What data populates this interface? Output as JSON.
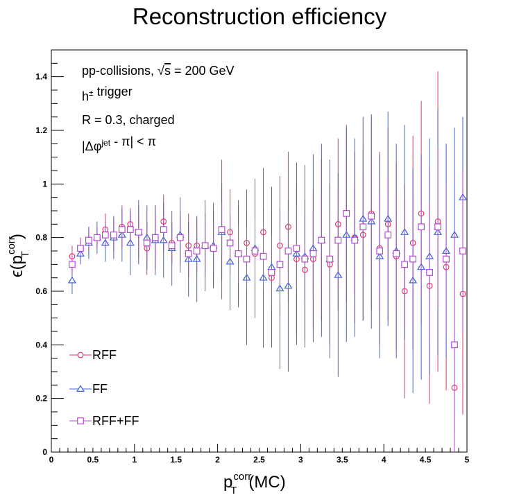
{
  "chart_data": {
    "type": "scatter",
    "title": "Reconstruction efficiency",
    "xlabel": {
      "main": "p",
      "sup": "corr",
      "sub": "T",
      "suffix": "(MC)"
    },
    "ylabel": {
      "prefix": "ϵ(p",
      "sup": "corr",
      "sub": "T",
      "suffix": ")"
    },
    "xlim": [
      0,
      5
    ],
    "ylim": [
      0,
      1.5
    ],
    "xticks": [
      0,
      0.5,
      1,
      1.5,
      2,
      2.5,
      3,
      3.5,
      4,
      4.5,
      5
    ],
    "xtick_labels": [
      "0",
      "0.5",
      "1",
      "1.5",
      "2",
      "2.5",
      "3",
      "3.5",
      "4",
      "4.5",
      "5"
    ],
    "yticks": [
      0,
      0.2,
      0.4,
      0.6,
      0.8,
      1,
      1.2,
      1.4
    ],
    "ytick_labels": [
      "0",
      "0.2",
      "0.4",
      "0.6",
      "0.8",
      "1",
      "1.2",
      "1.4"
    ],
    "grid": false,
    "legend": "bottom-left",
    "annotations": [
      {
        "pre": "pp-collisions, ",
        "sqrt": "s",
        "post": " = 200 GeV"
      },
      {
        "pre": "h",
        "sup": "±",
        "post": " trigger"
      },
      {
        "pre": "R = 0.3, charged"
      },
      {
        "pre": "|Δφ",
        "sup": "jet",
        "post": " - π| < π"
      }
    ],
    "x": [
      0.25,
      0.35,
      0.45,
      0.55,
      0.65,
      0.75,
      0.85,
      0.95,
      1.05,
      1.15,
      1.25,
      1.35,
      1.45,
      1.55,
      1.65,
      1.75,
      1.85,
      1.95,
      2.05,
      2.15,
      2.25,
      2.35,
      2.45,
      2.55,
      2.65,
      2.75,
      2.85,
      2.95,
      3.05,
      3.15,
      3.25,
      3.35,
      3.45,
      3.55,
      3.65,
      3.75,
      3.85,
      3.95,
      4.05,
      4.15,
      4.25,
      4.35,
      4.45,
      4.55,
      4.65,
      4.75,
      4.85,
      4.95
    ],
    "series": [
      {
        "name": "RFF",
        "color": "#e8356a",
        "marker": "circle",
        "values": [
          0.73,
          0.76,
          0.79,
          0.8,
          0.83,
          0.81,
          0.84,
          0.85,
          0.82,
          0.76,
          0.8,
          0.86,
          0.78,
          0.8,
          0.77,
          0.77,
          0.77,
          0.76,
          0.83,
          0.82,
          0.74,
          0.78,
          0.74,
          0.82,
          0.65,
          0.77,
          0.84,
          0.72,
          0.68,
          0.72,
          0.79,
          0.7,
          0.85,
          0.89,
          0.8,
          0.81,
          0.89,
          0.76,
          0.85,
          0.73,
          0.6,
          0.78,
          0.89,
          0.62,
          0.86,
          0.69,
          0.24,
          0.59
        ],
        "errors": [
          0.04,
          0.04,
          0.05,
          0.04,
          0.06,
          0.06,
          0.08,
          0.06,
          0.1,
          0.1,
          0.12,
          0.1,
          0.08,
          0.1,
          0.12,
          0.1,
          0.12,
          0.14,
          0.26,
          0.16,
          0.18,
          0.2,
          0.22,
          0.24,
          0.24,
          0.26,
          0.28,
          0.28,
          0.26,
          0.26,
          0.3,
          0.3,
          0.32,
          0.33,
          0.32,
          0.32,
          0.36,
          0.36,
          0.36,
          0.35,
          0.4,
          0.4,
          0.42,
          0.44,
          0.56,
          0.46,
          0.18,
          0.45
        ]
      },
      {
        "name": "FF",
        "color": "#3c64dc",
        "marker": "triangle",
        "values": [
          0.64,
          0.74,
          0.78,
          0.8,
          0.78,
          0.8,
          0.81,
          0.78,
          0.82,
          0.8,
          0.79,
          0.79,
          0.76,
          0.81,
          0.72,
          0.72,
          0.77,
          0.77,
          0.82,
          0.71,
          0.74,
          0.65,
          0.76,
          0.65,
          0.69,
          0.61,
          0.62,
          0.74,
          0.73,
          0.76,
          0.79,
          0.72,
          0.66,
          0.81,
          0.8,
          0.87,
          0.86,
          0.73,
          0.87,
          0.75,
          0.82,
          0.64,
          0.69,
          0.73,
          0.82,
          0.75,
          0.81,
          0.95
        ],
        "errors": [
          0.05,
          0.04,
          0.06,
          0.06,
          0.07,
          0.08,
          0.1,
          0.12,
          0.12,
          0.12,
          0.13,
          0.14,
          0.14,
          0.14,
          0.14,
          0.16,
          0.17,
          0.16,
          0.18,
          0.18,
          0.2,
          0.25,
          0.26,
          0.26,
          0.3,
          0.3,
          0.32,
          0.34,
          0.34,
          0.35,
          0.36,
          0.37,
          0.38,
          0.4,
          0.37,
          0.38,
          0.4,
          0.38,
          0.4,
          0.4,
          0.4,
          0.42,
          0.42,
          0.44,
          0.46,
          0.4,
          0.4,
          0.3
        ]
      },
      {
        "name": "RFF+FF",
        "color": "#b845d8",
        "marker": "square",
        "values": [
          0.7,
          0.76,
          0.79,
          0.8,
          0.81,
          0.81,
          0.83,
          0.83,
          0.82,
          0.78,
          0.8,
          0.83,
          0.77,
          0.8,
          0.74,
          0.75,
          0.77,
          0.76,
          0.83,
          0.78,
          0.74,
          0.72,
          0.75,
          0.73,
          0.67,
          0.7,
          0.75,
          0.76,
          0.72,
          0.74,
          0.79,
          0.72,
          0.79,
          0.89,
          0.79,
          0.84,
          0.88,
          0.75,
          0.81,
          0.74,
          0.7,
          0.72,
          0.84,
          0.67,
          0.84,
          0.72,
          0.4,
          0.75
        ],
        "errors": [
          0.04,
          0.03,
          0.04,
          0.04,
          0.05,
          0.05,
          0.06,
          0.06,
          0.07,
          0.07,
          0.08,
          0.08,
          0.07,
          0.08,
          0.08,
          0.08,
          0.09,
          0.09,
          0.1,
          0.1,
          0.11,
          0.12,
          0.12,
          0.13,
          0.14,
          0.14,
          0.15,
          0.16,
          0.16,
          0.16,
          0.17,
          0.18,
          0.19,
          0.2,
          0.2,
          0.2,
          0.22,
          0.22,
          0.22,
          0.22,
          0.24,
          0.25,
          0.26,
          0.26,
          0.3,
          0.28,
          0.42,
          0.3
        ]
      }
    ]
  }
}
